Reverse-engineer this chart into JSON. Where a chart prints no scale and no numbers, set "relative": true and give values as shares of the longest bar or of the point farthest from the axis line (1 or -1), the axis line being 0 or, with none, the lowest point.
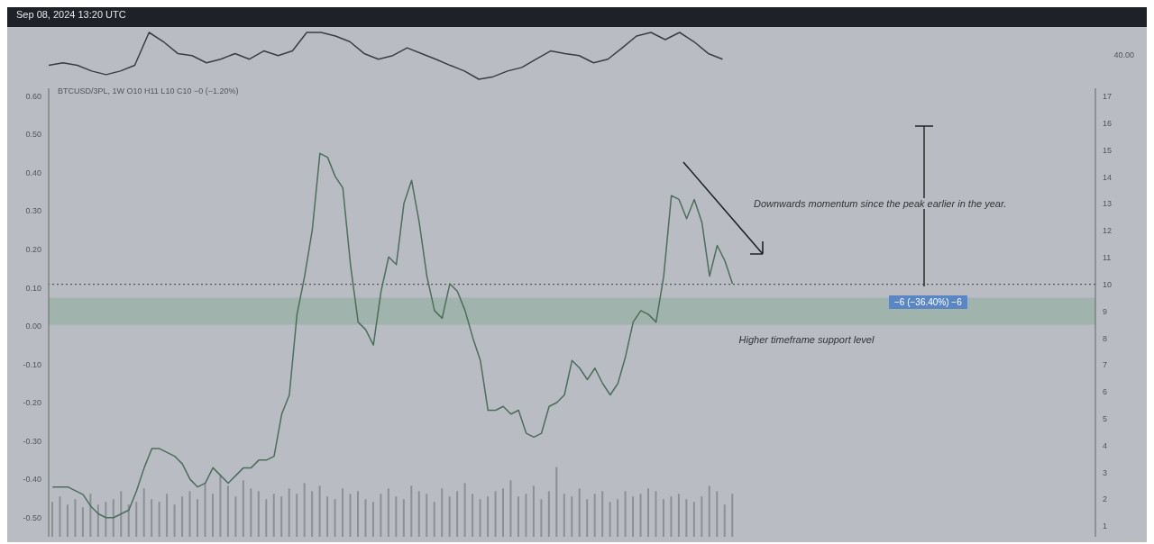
{
  "chart_data": [
    {
      "type": "line",
      "relative": true,
      "annotations": [
        "Sep 08, 2024 13:20 UTC",
        "40.00"
      ],
      "categories": [
        null,
        null,
        null,
        null,
        null,
        null,
        null,
        null,
        null,
        null,
        null,
        null,
        null,
        null,
        null,
        null,
        null,
        null,
        null,
        null,
        null,
        null,
        null,
        null,
        null,
        null,
        null,
        null,
        null,
        null,
        null,
        null,
        null,
        null,
        null,
        null,
        null,
        null,
        null,
        null,
        null,
        null,
        null,
        null,
        null,
        null,
        null,
        null,
        null,
        null,
        null,
        null,
        null,
        null,
        null,
        null,
        null,
        null,
        null,
        null,
        null,
        null,
        null,
        null,
        null,
        null,
        null,
        null,
        null,
        null,
        null,
        null,
        null,
        null
      ],
      "series": [
        {
          "color": "#3a3d44",
          "values": [
            0.36,
            0.41,
            0.36,
            0.25,
            0.18,
            0.25,
            0.36,
            1,
            0.82,
            0.59,
            0.55,
            0.41,
            0.48,
            0.59,
            0.48,
            0.64,
            0.55,
            0.64,
            1,
            1,
            0.93,
            0.82,
            0.59,
            0.48,
            0.55,
            0.7,
            0.59,
            0.48,
            0.36,
            0.25,
            0.09,
            0.14,
            0.25,
            0.32,
            0.48,
            0.64,
            0.59,
            0.55,
            0.41,
            0.48,
            0.7,
            0.93,
            1,
            0.86,
            1,
            0.82,
            0.59,
            0.48,
            null,
            null,
            null,
            null,
            null,
            null,
            null,
            null,
            null,
            null,
            null,
            null,
            null,
            null,
            null,
            null,
            null,
            null,
            null,
            null,
            null,
            null,
            null,
            null,
            null,
            null
          ]
        }
      ]
    },
    {
      "type": "line",
      "annotations": [
        "BTCUSD/3PL, 1W  O10 H11 L10 C10 −0 (−1.20%)",
        "Downwards momentum since the peak earlier in the year.",
        "−6 (−36.40%) −6"
      ],
      "categories": [
        null,
        null,
        null,
        null,
        null,
        null,
        null,
        null,
        null,
        null,
        null,
        null,
        null,
        null,
        null,
        null,
        null,
        null,
        null,
        null,
        null,
        null,
        null,
        null,
        null,
        null,
        null,
        null,
        null,
        null,
        null,
        null,
        null,
        null,
        null,
        null,
        null,
        null,
        null,
        null,
        null,
        null,
        null,
        null,
        null,
        null,
        null,
        null,
        null,
        null,
        null,
        null,
        null,
        null,
        null,
        null,
        null,
        null,
        null,
        null,
        null,
        null,
        null,
        null,
        null,
        null,
        null,
        null,
        null,
        null,
        null,
        null,
        null,
        null,
        null,
        null,
        null,
        null,
        null,
        null,
        null,
        null,
        null,
        null,
        null,
        null,
        null,
        null,
        null,
        null,
        null,
        null,
        null,
        null,
        null,
        null,
        null,
        null,
        null,
        null,
        null,
        null,
        null,
        null,
        null,
        null,
        null,
        null,
        null,
        null,
        null,
        null,
        null,
        null,
        null,
        null,
        null,
        null,
        null,
        null,
        null,
        null,
        null,
        null,
        null,
        null,
        null,
        null,
        null,
        null,
        null,
        null,
        null,
        null,
        null,
        null,
        null
      ],
      "series": [
        {
          "type": "line",
          "color": "#4d6e5a",
          "values": [
            -0.42,
            -0.42,
            -0.42,
            -0.43,
            -0.44,
            -0.47,
            -0.49,
            -0.5,
            -0.5,
            -0.49,
            -0.48,
            -0.43,
            -0.37,
            -0.32,
            -0.32,
            -0.33,
            -0.34,
            -0.36,
            -0.4,
            -0.42,
            -0.41,
            -0.37,
            -0.39,
            -0.41,
            -0.39,
            -0.37,
            -0.37,
            -0.35,
            -0.35,
            -0.34,
            -0.23,
            -0.18,
            0.03,
            0.13,
            0.25,
            0.45,
            0.44,
            0.39,
            0.36,
            0.16,
            0.01,
            -0.01,
            -0.05,
            0.09,
            0.18,
            0.16,
            0.32,
            0.38,
            0.27,
            0.13,
            0.04,
            0.02,
            0.11,
            0.09,
            0.04,
            -0.03,
            -0.09,
            -0.22,
            -0.22,
            -0.21,
            -0.23,
            -0.22,
            -0.28,
            -0.29,
            -0.28,
            -0.21,
            -0.2,
            -0.18,
            -0.09,
            -0.11,
            -0.14,
            -0.11,
            -0.15,
            -0.18,
            -0.15,
            -0.08,
            0.01,
            0.04,
            0.03,
            0.01,
            0.13,
            0.34,
            0.33,
            0.28,
            0.33,
            0.27,
            0.13,
            0.21,
            0.17,
            0.11,
            null,
            null,
            null,
            null,
            null,
            null,
            null,
            null,
            null,
            null,
            null,
            null,
            null,
            null,
            null,
            null,
            null,
            null,
            null,
            null,
            null,
            null,
            null,
            null,
            null,
            null,
            null,
            null,
            null,
            null,
            null,
            null,
            null,
            null,
            null,
            null,
            null,
            null,
            null,
            null,
            null,
            null,
            null,
            null,
            null,
            null,
            null
          ]
        },
        {
          "type": "bar",
          "axis": "y2",
          "color": "#8c8f96",
          "values": [
            1.9,
            2.1,
            1.8,
            2.0,
            1.7,
            2.2,
            1.8,
            1.9,
            2.0,
            2.3,
            1.8,
            1.9,
            2.4,
            2.0,
            1.9,
            2.2,
            1.8,
            2.1,
            2.3,
            2.0,
            2.6,
            2.2,
            2.9,
            2.5,
            2.1,
            2.7,
            2.4,
            2.3,
            2.0,
            2.2,
            2.1,
            2.4,
            2.2,
            2.6,
            2.3,
            2.5,
            2.1,
            2.0,
            2.4,
            2.2,
            2.3,
            2.0,
            1.9,
            2.2,
            2.4,
            2.1,
            2.0,
            2.5,
            2.3,
            2.2,
            1.9,
            2.4,
            2.1,
            2.3,
            2.6,
            2.2,
            2.0,
            2.1,
            2.3,
            2.4,
            2.7,
            2.1,
            2.2,
            2.5,
            2.0,
            2.3,
            3.2,
            2.2,
            2.1,
            2.4,
            2.0,
            2.2,
            2.3,
            1.9,
            2.0,
            2.3,
            2.1,
            2.2,
            2.4,
            2.3,
            2.0,
            2.1,
            2.2,
            2.0,
            1.9,
            2.1,
            2.5,
            2.3,
            1.8,
            2.2,
            null,
            null,
            null,
            null,
            null,
            null,
            null,
            null,
            null,
            null,
            null,
            null,
            null,
            null,
            null,
            null,
            null,
            null,
            null,
            null,
            null,
            null,
            null,
            null,
            null,
            null,
            null,
            null,
            null,
            null,
            null,
            null,
            null,
            null,
            null,
            null,
            null,
            null,
            null,
            null,
            null,
            null,
            null,
            null,
            null,
            null,
            null
          ]
        }
      ],
      "ylim": [
        -0.55,
        0.62
      ],
      "yticks": [
        {
          "value": -0.5,
          "label": "-0.50"
        },
        {
          "value": -0.4,
          "label": "-0.40"
        },
        {
          "value": -0.3,
          "label": "-0.30"
        },
        {
          "value": -0.2,
          "label": "-0.20"
        },
        {
          "value": -0.1,
          "label": "-0.10"
        },
        {
          "value": 0,
          "label": "0.00"
        },
        {
          "value": 0.1,
          "label": "0.10"
        },
        {
          "value": 0.2,
          "label": "0.20"
        },
        {
          "value": 0.3,
          "label": "0.30"
        },
        {
          "value": 0.4,
          "label": "0.40"
        },
        {
          "value": 0.5,
          "label": "0.50"
        },
        {
          "value": 0.6,
          "label": "0.60"
        }
      ],
      "y2lim": [
        0.6,
        17.3
      ],
      "y2ticks": [
        1,
        2,
        3,
        4,
        5,
        6,
        7,
        8,
        9,
        10,
        11,
        12,
        13,
        14,
        15,
        16,
        17
      ],
      "ref_lines": [
        {
          "axis": "y2",
          "value": 10,
          "line_style": "dotted",
          "color": "#3a3d44"
        }
      ],
      "bands": [
        {
          "axis": "y2",
          "from": 8.5,
          "to": 9.5,
          "label": "Higher timeframe support level",
          "color": "#8fae9c"
        }
      ],
      "tick_labels": "y"
    }
  ]
}
